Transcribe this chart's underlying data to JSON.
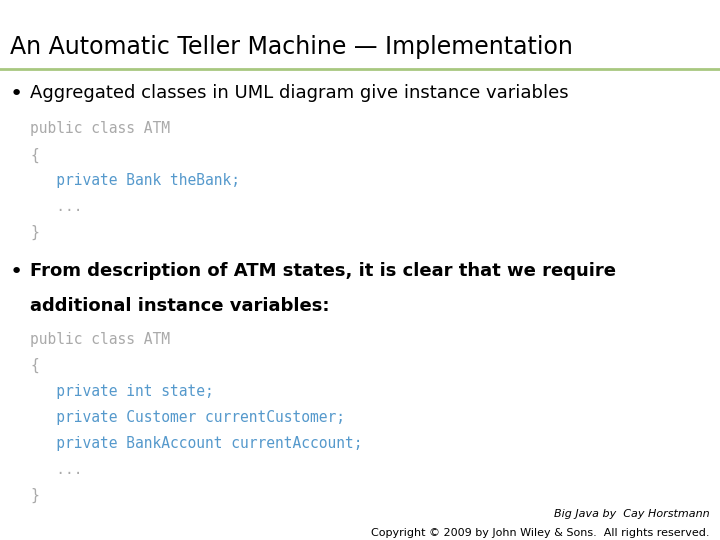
{
  "title": "An Automatic Teller Machine — Implementation",
  "title_fontsize": 17,
  "title_color": "#000000",
  "background_color": "#ffffff",
  "header_line_color": "#a8c880",
  "bullet1": "Aggregated classes in UML diagram give instance variables",
  "bullet2_line1": "From description of ATM states, it is clear that we require",
  "bullet2_line2": "additional instance variables:",
  "code1_lines": [
    "public class ATM",
    "{",
    "   private Bank theBank;",
    "   ...",
    "}"
  ],
  "code1_colors": [
    "#aaaaaa",
    "#aaaaaa",
    "#5599cc",
    "#aaaaaa",
    "#aaaaaa"
  ],
  "code2_lines": [
    "public class ATM",
    "{",
    "   private int state;",
    "   private Customer currentCustomer;",
    "   private BankAccount currentAccount;",
    "   ...",
    "}"
  ],
  "code2_colors": [
    "#aaaaaa",
    "#aaaaaa",
    "#5599cc",
    "#5599cc",
    "#5599cc",
    "#aaaaaa",
    "#aaaaaa"
  ],
  "footer_line1": "Big Java by  Cay Horstmann",
  "footer_line2": "Copyright © 2009 by John Wiley & Sons.  All rights reserved.",
  "bullet_color": "#000000",
  "bullet_fontsize": 13,
  "code_fontsize": 10.5,
  "body_fontsize": 13
}
